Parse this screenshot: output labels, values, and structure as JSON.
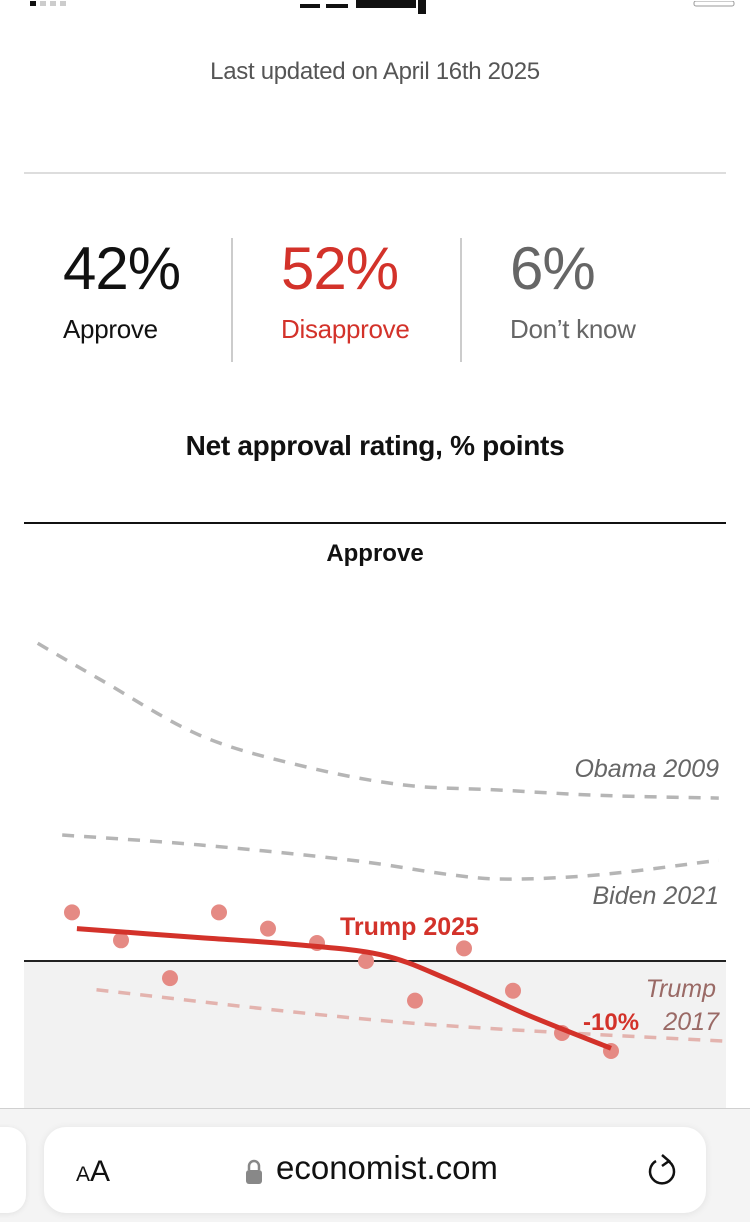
{
  "header": {
    "last_updated": "Last updated on April 16th 2025"
  },
  "stats": [
    {
      "value": "42%",
      "label": "Approve",
      "color": "#111111"
    },
    {
      "value": "52%",
      "label": "Disapprove",
      "color": "#d3322a"
    },
    {
      "value": "6%",
      "label": "Don’t know",
      "color": "#666666"
    }
  ],
  "chart_title": "Net approval rating, % points",
  "chart_section_label": "Approve",
  "chart_data": {
    "type": "line",
    "grid": false,
    "zero_line": 0,
    "series": [
      {
        "name": "Obama 2009",
        "style": "dashed",
        "color": "#b5b5b5",
        "points": [
          [
            0.3,
            35.3
          ],
          [
            1.6,
            31.2
          ],
          [
            3.6,
            25.1
          ],
          [
            5.6,
            21.8
          ],
          [
            7.7,
            19.6
          ],
          [
            9.7,
            19.0
          ],
          [
            11.8,
            18.4
          ],
          [
            14.2,
            18.1
          ]
        ]
      },
      {
        "name": "Biden 2021",
        "style": "dashed",
        "color": "#b5b5b5",
        "points": [
          [
            0.8,
            14.0
          ],
          [
            3.6,
            12.9
          ],
          [
            6.7,
            11.2
          ],
          [
            8.7,
            9.6
          ],
          [
            9.9,
            9.1
          ],
          [
            11.8,
            9.6
          ],
          [
            14.2,
            11.2
          ]
        ]
      },
      {
        "name": "Trump 2017",
        "style": "dashed",
        "color": "#e3b3ae",
        "points": [
          [
            1.5,
            -3.2
          ],
          [
            7.7,
            -6.8
          ],
          [
            14.3,
            -8.9
          ]
        ]
      },
      {
        "name": "Trump 2025",
        "style": "solid",
        "color": "#d3322a",
        "points": [
          [
            1.1,
            3.6
          ],
          [
            3.6,
            2.6
          ],
          [
            5.4,
            1.9
          ],
          [
            7.3,
            0.7
          ],
          [
            8.7,
            -2.1
          ],
          [
            10.3,
            -6.0
          ],
          [
            12.0,
            -9.7
          ]
        ],
        "polls": [
          5.4,
          2.3,
          -1.9,
          5.4,
          3.6,
          2.0,
          0.0,
          -4.4,
          1.4,
          -3.3,
          -8.0,
          -10.0
        ],
        "poll_color": "#e58a84"
      }
    ],
    "end_label": "-10%",
    "labels": {
      "obama": "Obama 2009",
      "biden": "Biden 2021",
      "trump2017_a": "Trump",
      "trump2017_b": "2017",
      "trump2025": "Trump 2025"
    }
  },
  "browser": {
    "text_size_label_small": "A",
    "text_size_label_large": "A",
    "url": "economist.com",
    "icons": [
      "lock-icon",
      "reload-icon"
    ]
  }
}
